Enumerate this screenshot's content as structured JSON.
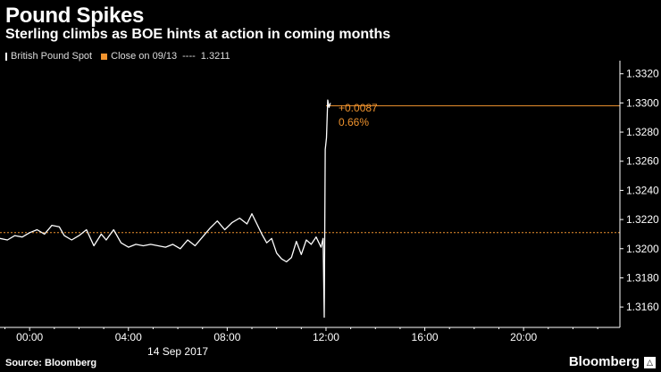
{
  "title": "Pound Spikes",
  "subtitle": "Sterling climbs as BOE hints at action in coming months",
  "legend": {
    "series_label": "British Pound Spot",
    "close_label": "Close on 09/13",
    "close_dashes": "----",
    "close_value": "1.3211"
  },
  "annotation": {
    "change": "+0.0087",
    "pct": "0.66%"
  },
  "footer": {
    "source": "Source: Bloomberg",
    "brand": "Bloomberg"
  },
  "colors": {
    "background": "#000000",
    "series": "#ffffff",
    "reference": "#f0932e",
    "axis": "#ffffff"
  },
  "chart_data": {
    "type": "line",
    "title": "Pound Spikes",
    "subtitle": "Sterling climbs as BOE hints at action in coming months",
    "x_date_label": "14 Sep 2017",
    "x_ticks": [
      "00:00",
      "04:00",
      "08:00",
      "12:00",
      "16:00",
      "20:00"
    ],
    "x_tick_hours": [
      0,
      4,
      8,
      12,
      16,
      20
    ],
    "xlim_hours": [
      -1.2,
      23.9
    ],
    "ylim": [
      1.3146,
      1.3329
    ],
    "y_ticks": [
      1.332,
      1.33,
      1.328,
      1.326,
      1.324,
      1.322,
      1.32,
      1.318,
      1.316
    ],
    "y_tick_labels": [
      "1.3320",
      "1.3300",
      "1.3280",
      "1.3260",
      "1.3240",
      "1.3220",
      "1.3200",
      "1.3180",
      "1.3160"
    ],
    "grid": false,
    "legend_position": "top-left",
    "reference_lines": [
      {
        "name": "Close on 09/13",
        "value": 1.3211,
        "start_hour": -1.2
      },
      {
        "name": "change",
        "value": 1.3298,
        "start_hour": 12.0
      }
    ],
    "series": [
      {
        "name": "British Pound Spot",
        "x": [
          -1.2,
          -0.9,
          -0.6,
          -0.3,
          0.0,
          0.3,
          0.6,
          0.9,
          1.2,
          1.4,
          1.7,
          2.0,
          2.3,
          2.6,
          2.9,
          3.1,
          3.4,
          3.7,
          4.0,
          4.3,
          4.6,
          4.9,
          5.2,
          5.5,
          5.8,
          6.1,
          6.4,
          6.7,
          7.0,
          7.3,
          7.6,
          7.9,
          8.2,
          8.5,
          8.8,
          9.0,
          9.2,
          9.4,
          9.6,
          9.8,
          10.0,
          10.2,
          10.4,
          10.6,
          10.8,
          11.0,
          11.2,
          11.4,
          11.6,
          11.8,
          11.88,
          11.93,
          11.97,
          12.02,
          12.07,
          12.12,
          12.18
        ],
        "values": [
          1.3207,
          1.3206,
          1.3209,
          1.3208,
          1.3211,
          1.3213,
          1.321,
          1.3216,
          1.3215,
          1.3209,
          1.3206,
          1.3209,
          1.3213,
          1.3202,
          1.321,
          1.3206,
          1.3213,
          1.3204,
          1.3201,
          1.3203,
          1.3202,
          1.3203,
          1.3202,
          1.3201,
          1.3203,
          1.32,
          1.3206,
          1.3202,
          1.3208,
          1.3214,
          1.3219,
          1.3213,
          1.3218,
          1.3221,
          1.3217,
          1.3224,
          1.3217,
          1.321,
          1.3204,
          1.3207,
          1.3197,
          1.3193,
          1.3191,
          1.3194,
          1.3205,
          1.3196,
          1.3206,
          1.3203,
          1.3208,
          1.3201,
          1.3207,
          1.3153,
          1.3268,
          1.3276,
          1.3302,
          1.3297,
          1.33
        ]
      }
    ]
  }
}
